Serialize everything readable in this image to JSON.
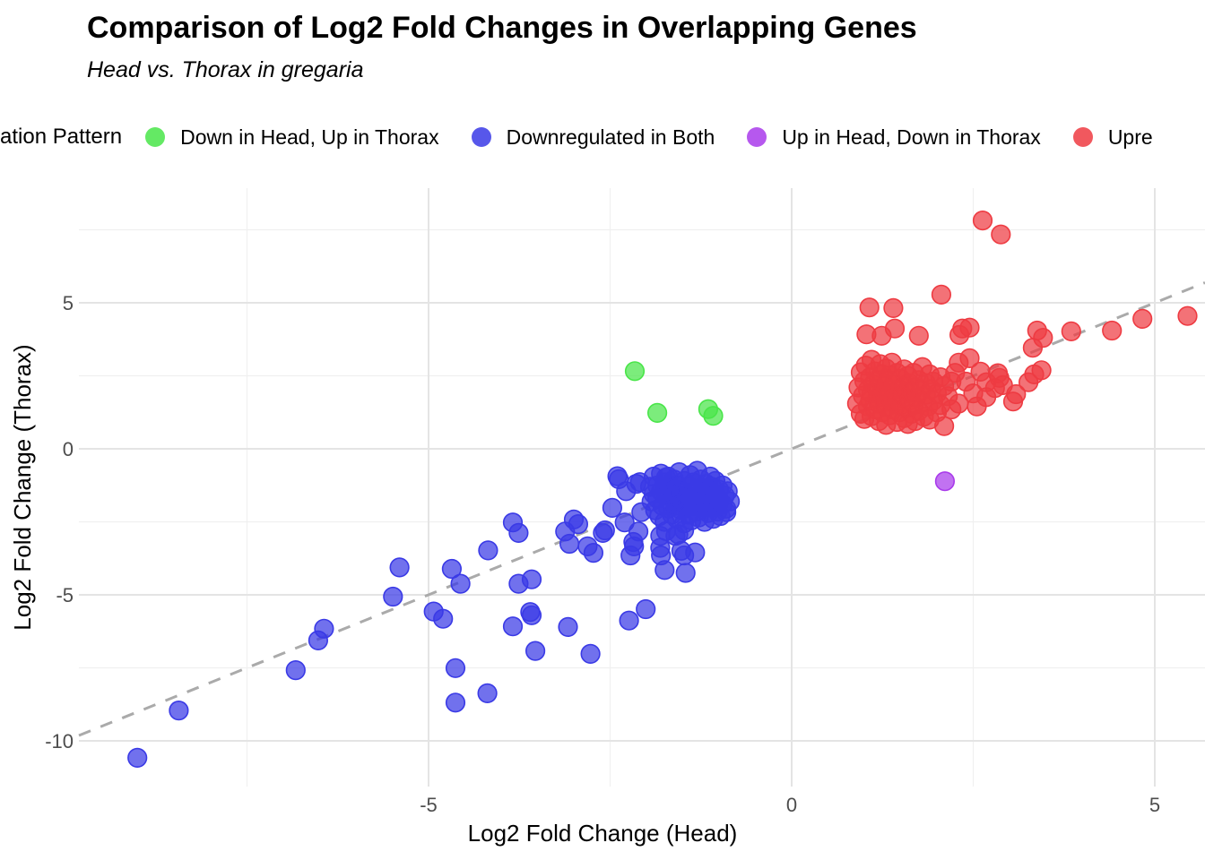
{
  "title": "Comparison of Log2 Fold Changes in Overlapping Genes",
  "subtitle": "Head vs. Thorax in gregaria",
  "legend": {
    "title": "ation Pattern",
    "items": [
      {
        "label": "Down in Head, Up in Thorax",
        "color": "#49e549"
      },
      {
        "label": "Downregulated in Both",
        "color": "#3a3ae6"
      },
      {
        "label": "Up in Head, Down in Thorax",
        "color": "#a93beb"
      },
      {
        "label": "Upre",
        "color": "#ee3b42"
      }
    ]
  },
  "chart_data": {
    "type": "scatter",
    "title": "Comparison of Log2 Fold Changes in Overlapping Genes",
    "subtitle": "Head vs. Thorax in gregaria",
    "xlabel": "Log2 Fold Change (Head)",
    "ylabel": "Log2 Fold Change (Thorax)",
    "x_ticks": [
      -5,
      0,
      5
    ],
    "y_ticks": [
      5,
      0,
      -5,
      -10
    ],
    "x_minor": [
      -7.5,
      -2.5,
      2.5
    ],
    "y_minor": [
      7.5,
      2.5,
      -2.5,
      -7.5
    ],
    "xlim": [
      -9.8,
      5.7
    ],
    "ylim": [
      -11.5,
      8.9
    ],
    "grid": "major+minor",
    "legend_position": "top",
    "reference_line": {
      "type": "identity y=x",
      "style": "dashed",
      "color": "#aaaaaa"
    },
    "series": [
      {
        "name": "Down in Head, Up in Thorax",
        "color": "#49e549",
        "points": [
          [
            -2.16,
            2.66
          ],
          [
            -1.85,
            1.23
          ],
          [
            -1.15,
            1.36
          ],
          [
            -1.08,
            1.13
          ]
        ]
      },
      {
        "name": "Downregulated in Both",
        "color": "#3a3ae6",
        "points": [
          [
            -9.01,
            -10.58
          ],
          [
            -8.44,
            -8.96
          ],
          [
            -6.83,
            -7.58
          ],
          [
            -6.52,
            -6.56
          ],
          [
            -6.44,
            -6.16
          ],
          [
            -5.49,
            -5.06
          ],
          [
            -5.4,
            -4.06
          ],
          [
            -4.93,
            -5.57
          ],
          [
            -4.8,
            -5.82
          ],
          [
            -4.68,
            -4.11
          ],
          [
            -4.63,
            -7.51
          ],
          [
            -4.63,
            -8.69
          ],
          [
            -4.56,
            -4.62
          ],
          [
            -4.19,
            -8.37
          ],
          [
            -4.18,
            -3.48
          ],
          [
            -3.84,
            -2.52
          ],
          [
            -3.84,
            -6.08
          ],
          [
            -3.76,
            -2.88
          ],
          [
            -3.76,
            -4.62
          ],
          [
            -3.6,
            -5.59
          ],
          [
            -3.58,
            -4.47
          ],
          [
            -3.58,
            -5.7
          ],
          [
            -3.53,
            -6.92
          ],
          [
            -3.12,
            -2.83
          ],
          [
            -3.08,
            -6.1
          ],
          [
            -3.06,
            -3.25
          ],
          [
            -3.0,
            -2.42
          ],
          [
            -2.94,
            -2.58
          ],
          [
            -2.81,
            -3.34
          ],
          [
            -2.77,
            -7.02
          ],
          [
            -2.73,
            -3.56
          ],
          [
            -2.6,
            -2.88
          ],
          [
            -2.57,
            -2.79
          ],
          [
            -2.47,
            -2.02
          ],
          [
            -2.4,
            -0.94
          ],
          [
            -2.38,
            -1.04
          ],
          [
            -2.3,
            -2.52
          ],
          [
            -2.28,
            -1.45
          ],
          [
            -2.24,
            -5.88
          ],
          [
            -2.22,
            -3.65
          ],
          [
            -2.18,
            -3.19
          ],
          [
            -2.17,
            -3.34
          ],
          [
            -2.14,
            -1.2
          ],
          [
            -2.11,
            -2.83
          ],
          [
            -2.09,
            -1.14
          ],
          [
            -2.07,
            -2.17
          ],
          [
            -2.01,
            -5.49
          ],
          [
            -1.81,
            -2.98
          ],
          [
            -1.81,
            -3.39
          ],
          [
            -1.8,
            -3.65
          ],
          [
            -1.75,
            -4.15
          ],
          [
            -1.73,
            -0.98
          ],
          [
            -1.73,
            -2.82
          ],
          [
            -1.6,
            -2.98
          ],
          [
            -1.56,
            -2.93
          ],
          [
            -1.52,
            -3.49
          ],
          [
            -1.48,
            -2.79
          ],
          [
            -1.48,
            -3.65
          ],
          [
            -1.46,
            -4.25
          ],
          [
            -1.33,
            -3.55
          ],
          [
            -0.9,
            -2.17
          ],
          [
            -1.95,
            -1.3
          ],
          [
            -1.93,
            -1.8
          ],
          [
            -1.9,
            -0.95
          ],
          [
            -1.9,
            -1.55
          ],
          [
            -1.88,
            -2.1
          ],
          [
            -1.85,
            -1.25
          ],
          [
            -1.85,
            -1.7
          ],
          [
            -1.82,
            -2.3
          ],
          [
            -1.8,
            -0.85
          ],
          [
            -1.8,
            -1.45
          ],
          [
            -1.78,
            -1.95
          ],
          [
            -1.75,
            -1.15
          ],
          [
            -1.75,
            -2.5
          ],
          [
            -1.72,
            -1.6
          ],
          [
            -1.7,
            -0.95
          ],
          [
            -1.7,
            -2.05
          ],
          [
            -1.68,
            -1.35
          ],
          [
            -1.68,
            -1.8
          ],
          [
            -1.65,
            -2.25
          ],
          [
            -1.62,
            -1.05
          ],
          [
            -1.62,
            -1.55
          ],
          [
            -1.6,
            -1.95
          ],
          [
            -1.58,
            -2.4
          ],
          [
            -1.58,
            -1.25
          ],
          [
            -1.55,
            -1.7
          ],
          [
            -1.55,
            -0.8
          ],
          [
            -1.52,
            -2.1
          ],
          [
            -1.52,
            -1.45
          ],
          [
            -1.5,
            -1.85
          ],
          [
            -1.48,
            -1.1
          ],
          [
            -1.48,
            -2.55
          ],
          [
            -1.45,
            -1.6
          ],
          [
            -1.45,
            -2.0
          ],
          [
            -1.42,
            -1.3
          ],
          [
            -1.42,
            -2.25
          ],
          [
            -1.4,
            -0.9
          ],
          [
            -1.4,
            -1.75
          ],
          [
            -1.38,
            -1.5
          ],
          [
            -1.38,
            -2.45
          ],
          [
            -1.35,
            -1.95
          ],
          [
            -1.35,
            -1.15
          ],
          [
            -1.32,
            -1.65
          ],
          [
            -1.32,
            -2.15
          ],
          [
            -1.3,
            -1.4
          ],
          [
            -1.3,
            -0.75
          ],
          [
            -1.28,
            -1.85
          ],
          [
            -1.28,
            -2.35
          ],
          [
            -1.25,
            -1.05
          ],
          [
            -1.25,
            -1.6
          ],
          [
            -1.22,
            -2.0
          ],
          [
            -1.22,
            -1.35
          ],
          [
            -1.2,
            -1.75
          ],
          [
            -1.2,
            -2.5
          ],
          [
            -1.18,
            -1.2
          ],
          [
            -1.18,
            -1.95
          ],
          [
            -1.15,
            -1.5
          ],
          [
            -1.15,
            -2.2
          ],
          [
            -1.12,
            -0.95
          ],
          [
            -1.12,
            -1.7
          ],
          [
            -1.1,
            -2.0
          ],
          [
            -1.1,
            -1.3
          ],
          [
            -1.08,
            -1.85
          ],
          [
            -1.08,
            -2.4
          ],
          [
            -1.05,
            -1.55
          ],
          [
            -1.05,
            -1.1
          ],
          [
            -1.02,
            -1.95
          ],
          [
            -1.02,
            -2.15
          ],
          [
            -1.0,
            -1.4
          ],
          [
            -1.0,
            -1.75
          ],
          [
            -0.98,
            -2.3
          ],
          [
            -0.95,
            -1.25
          ],
          [
            -0.95,
            -1.9
          ],
          [
            -0.92,
            -1.6
          ],
          [
            -0.9,
            -2.05
          ],
          [
            -0.88,
            -1.45
          ],
          [
            -0.85,
            -1.8
          ]
        ]
      },
      {
        "name": "Up in Head, Down in Thorax",
        "color": "#a93beb",
        "points": [
          [
            2.11,
            -1.11
          ]
        ]
      },
      {
        "name": "Upre",
        "color": "#ee3b42",
        "points": [
          [
            2.63,
            7.82
          ],
          [
            2.88,
            7.34
          ],
          [
            2.06,
            5.28
          ],
          [
            1.07,
            4.84
          ],
          [
            1.4,
            4.82
          ],
          [
            2.45,
            4.15
          ],
          [
            2.35,
            4.12
          ],
          [
            1.42,
            4.12
          ],
          [
            3.38,
            4.05
          ],
          [
            4.41,
            4.05
          ],
          [
            3.85,
            4.02
          ],
          [
            1.03,
            3.92
          ],
          [
            2.31,
            3.9
          ],
          [
            1.24,
            3.87
          ],
          [
            1.75,
            3.87
          ],
          [
            3.46,
            3.8
          ],
          [
            3.32,
            3.46
          ],
          [
            2.45,
            3.1
          ],
          [
            4.83,
            4.45
          ],
          [
            5.45,
            4.55
          ],
          [
            2.6,
            2.64
          ],
          [
            2.86,
            2.43
          ],
          [
            2.84,
            2.59
          ],
          [
            2.8,
            2.08
          ],
          [
            2.91,
            2.18
          ],
          [
            3.09,
            1.87
          ],
          [
            3.05,
            1.62
          ],
          [
            3.26,
            2.28
          ],
          [
            3.34,
            2.55
          ],
          [
            3.44,
            2.69
          ],
          [
            2.68,
            2.28
          ],
          [
            2.68,
            1.77
          ],
          [
            2.55,
            1.45
          ],
          [
            2.4,
            2.3
          ],
          [
            2.3,
            2.95
          ],
          [
            2.25,
            2.6
          ],
          [
            2.5,
            1.9
          ],
          [
            2.3,
            1.55
          ],
          [
            0.9,
            1.55
          ],
          [
            0.92,
            2.1
          ],
          [
            0.95,
            1.2
          ],
          [
            0.95,
            2.62
          ],
          [
            0.98,
            1.82
          ],
          [
            1.0,
            1.02
          ],
          [
            1.0,
            2.32
          ],
          [
            1.02,
            2.85
          ],
          [
            1.05,
            1.45
          ],
          [
            1.05,
            2.02
          ],
          [
            1.08,
            1.65
          ],
          [
            1.08,
            2.45
          ],
          [
            1.1,
            1.12
          ],
          [
            1.1,
            1.9
          ],
          [
            1.1,
            3.05
          ],
          [
            1.12,
            2.2
          ],
          [
            1.15,
            1.35
          ],
          [
            1.15,
            2.65
          ],
          [
            1.18,
            1.75
          ],
          [
            1.18,
            2.05
          ],
          [
            1.2,
            0.95
          ],
          [
            1.2,
            1.55
          ],
          [
            1.2,
            2.35
          ],
          [
            1.22,
            2.9
          ],
          [
            1.25,
            1.25
          ],
          [
            1.25,
            1.95
          ],
          [
            1.25,
            2.55
          ],
          [
            1.28,
            1.65
          ],
          [
            1.28,
            2.15
          ],
          [
            1.3,
            0.82
          ],
          [
            1.3,
            1.45
          ],
          [
            1.3,
            2.75
          ],
          [
            1.32,
            1.85
          ],
          [
            1.32,
            2.32
          ],
          [
            1.35,
            1.15
          ],
          [
            1.35,
            2.02
          ],
          [
            1.35,
            2.52
          ],
          [
            1.38,
            1.6
          ],
          [
            1.38,
            2.95
          ],
          [
            1.4,
            1.35
          ],
          [
            1.4,
            2.2
          ],
          [
            1.42,
            1.9
          ],
          [
            1.45,
            0.92
          ],
          [
            1.45,
            1.7
          ],
          [
            1.45,
            2.6
          ],
          [
            1.48,
            1.25
          ],
          [
            1.48,
            2.05
          ],
          [
            1.5,
            1.5
          ],
          [
            1.5,
            2.4
          ],
          [
            1.52,
            1.85
          ],
          [
            1.55,
            1.05
          ],
          [
            1.55,
            2.15
          ],
          [
            1.55,
            2.72
          ],
          [
            1.58,
            1.4
          ],
          [
            1.58,
            1.95
          ],
          [
            1.6,
            0.85
          ],
          [
            1.6,
            2.5
          ],
          [
            1.62,
            1.65
          ],
          [
            1.62,
            2.25
          ],
          [
            1.65,
            1.2
          ],
          [
            1.65,
            1.92
          ],
          [
            1.68,
            1.5
          ],
          [
            1.68,
            2.6
          ],
          [
            1.7,
            0.95
          ],
          [
            1.7,
            2.1
          ],
          [
            1.72,
            1.75
          ],
          [
            1.75,
            1.3
          ],
          [
            1.75,
            2.35
          ],
          [
            1.78,
            2.0
          ],
          [
            1.8,
            1.6
          ],
          [
            1.8,
            2.8
          ],
          [
            1.82,
            1.1
          ],
          [
            1.85,
            1.85
          ],
          [
            1.85,
            2.25
          ],
          [
            1.88,
            1.45
          ],
          [
            1.9,
            1.0
          ],
          [
            1.9,
            2.55
          ],
          [
            1.92,
            2.05
          ],
          [
            1.95,
            1.65
          ],
          [
            1.95,
            2.3
          ],
          [
            2.0,
            1.25
          ],
          [
            2.0,
            1.9
          ],
          [
            2.05,
            1.5
          ],
          [
            2.05,
            2.45
          ],
          [
            2.1,
            0.78
          ],
          [
            2.1,
            2.15
          ],
          [
            2.15,
            1.8
          ],
          [
            2.2,
            1.35
          ],
          [
            2.2,
            2.3
          ]
        ]
      }
    ]
  }
}
